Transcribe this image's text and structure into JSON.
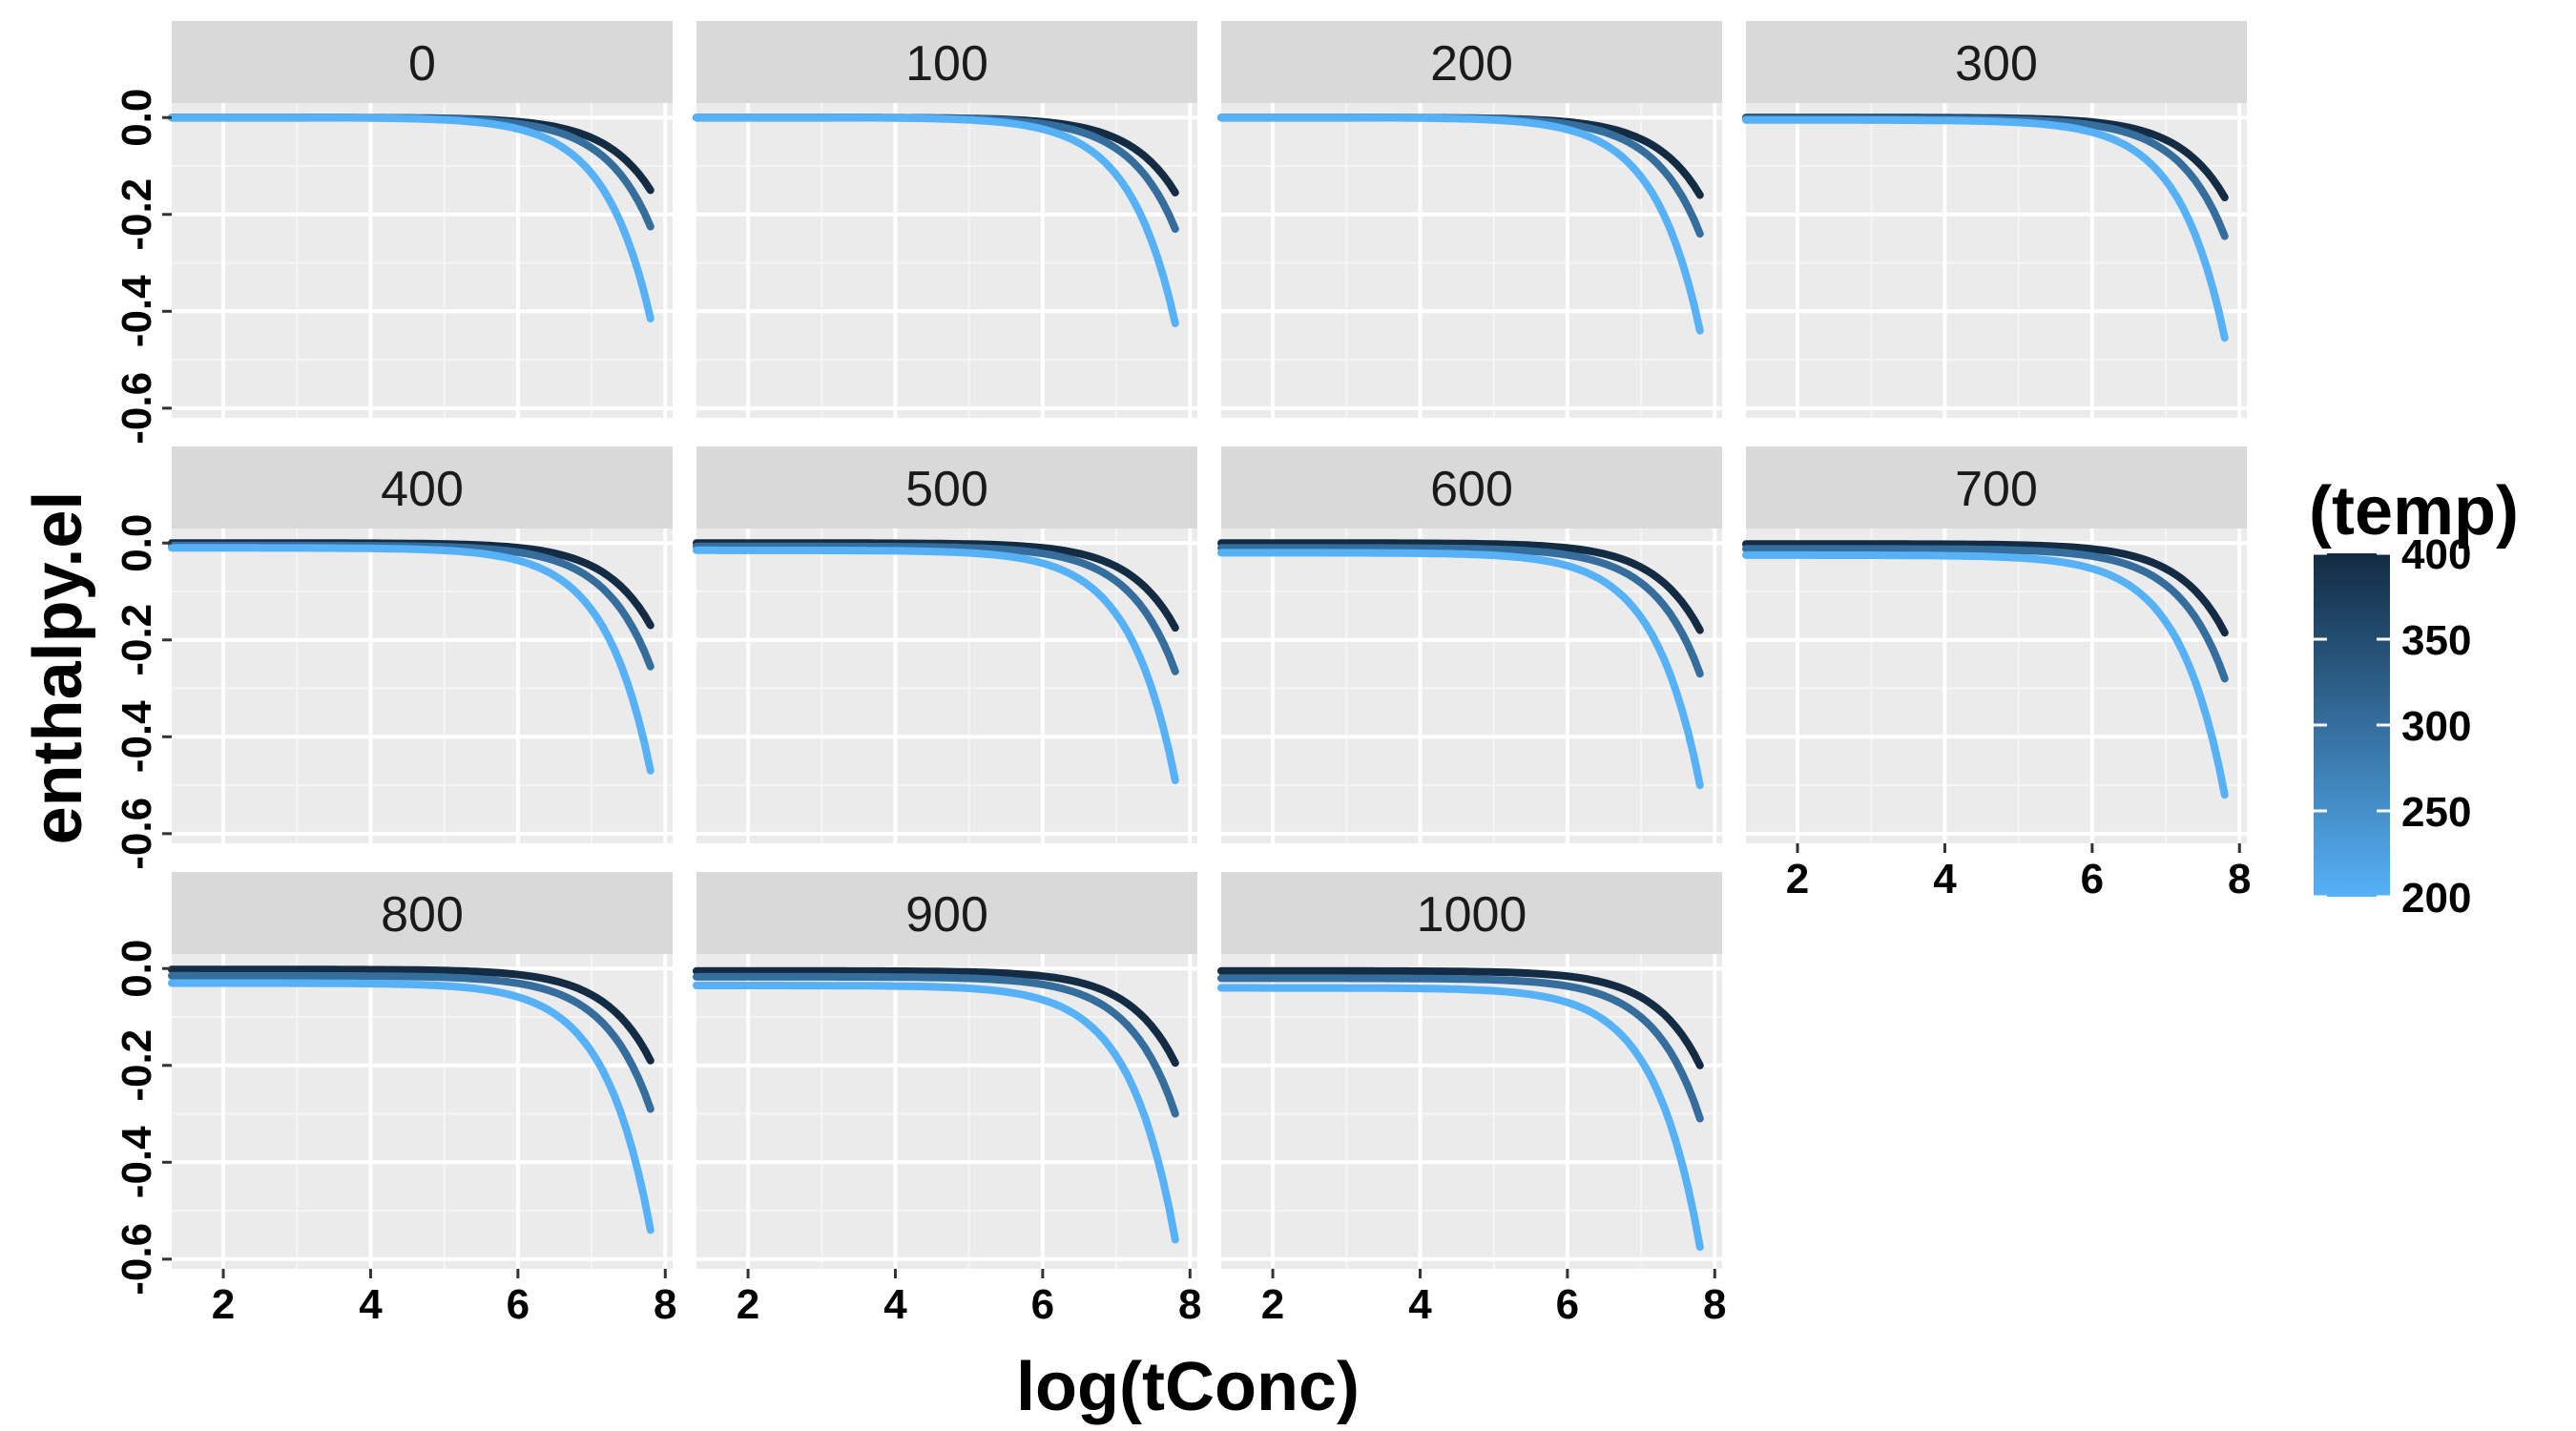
{
  "chart_data": {
    "type": "line",
    "facet_variable_values": [
      "0",
      "100",
      "200",
      "300",
      "400",
      "500",
      "600",
      "700",
      "800",
      "900",
      "1000"
    ],
    "xlabel": "log(tConc)",
    "ylabel": "enthalpy.el",
    "xlim": [
      1.3,
      8.1
    ],
    "ylim": [
      -0.62,
      0.03
    ],
    "x_ticks": [
      2,
      4,
      6,
      8
    ],
    "x_tick_labels": [
      "2",
      "4",
      "6",
      "8"
    ],
    "y_ticks": [
      0.0,
      -0.2,
      -0.4,
      -0.6
    ],
    "y_tick_labels": [
      "0.0",
      "-0.2",
      "-0.4",
      "-0.6"
    ],
    "grid": true,
    "legend": {
      "title": "(temp)",
      "type": "colorbar",
      "position": "right",
      "range": [
        200,
        400
      ],
      "ticks": [
        "400",
        "350",
        "300",
        "250",
        "200"
      ],
      "color_low": "#56B1F7",
      "color_high": "#132B43"
    },
    "x_range_of_curves": [
      1.3,
      7.8
    ],
    "series_temps": [
      400,
      300,
      200
    ],
    "panels": [
      {
        "facet": "0",
        "curves": [
          {
            "temp": 400,
            "start": 0.0,
            "end": -0.15
          },
          {
            "temp": 300,
            "start": 0.0,
            "end": -0.225
          },
          {
            "temp": 200,
            "start": 0.0,
            "end": -0.415
          }
        ]
      },
      {
        "facet": "100",
        "curves": [
          {
            "temp": 400,
            "start": 0.0,
            "end": -0.155
          },
          {
            "temp": 300,
            "start": 0.0,
            "end": -0.23
          },
          {
            "temp": 200,
            "start": 0.0,
            "end": -0.425
          }
        ]
      },
      {
        "facet": "200",
        "curves": [
          {
            "temp": 400,
            "start": 0.0,
            "end": -0.16
          },
          {
            "temp": 300,
            "start": 0.0,
            "end": -0.24
          },
          {
            "temp": 200,
            "start": 0.0,
            "end": -0.44
          }
        ]
      },
      {
        "facet": "300",
        "curves": [
          {
            "temp": 400,
            "start": 0.0,
            "end": -0.165
          },
          {
            "temp": 300,
            "start": -0.002,
            "end": -0.245
          },
          {
            "temp": 200,
            "start": -0.005,
            "end": -0.455
          }
        ]
      },
      {
        "facet": "400",
        "curves": [
          {
            "temp": 400,
            "start": 0.0,
            "end": -0.17
          },
          {
            "temp": 300,
            "start": -0.005,
            "end": -0.255
          },
          {
            "temp": 200,
            "start": -0.01,
            "end": -0.47
          }
        ]
      },
      {
        "facet": "500",
        "curves": [
          {
            "temp": 400,
            "start": 0.0,
            "end": -0.175
          },
          {
            "temp": 300,
            "start": -0.007,
            "end": -0.265
          },
          {
            "temp": 200,
            "start": -0.015,
            "end": -0.49
          }
        ]
      },
      {
        "facet": "600",
        "curves": [
          {
            "temp": 400,
            "start": 0.0,
            "end": -0.18
          },
          {
            "temp": 300,
            "start": -0.01,
            "end": -0.27
          },
          {
            "temp": 200,
            "start": -0.02,
            "end": -0.5
          }
        ]
      },
      {
        "facet": "700",
        "curves": [
          {
            "temp": 400,
            "start": -0.002,
            "end": -0.185
          },
          {
            "temp": 300,
            "start": -0.012,
            "end": -0.28
          },
          {
            "temp": 200,
            "start": -0.025,
            "end": -0.52
          }
        ]
      },
      {
        "facet": "800",
        "curves": [
          {
            "temp": 400,
            "start": -0.002,
            "end": -0.19
          },
          {
            "temp": 300,
            "start": -0.015,
            "end": -0.29
          },
          {
            "temp": 200,
            "start": -0.03,
            "end": -0.54
          }
        ]
      },
      {
        "facet": "900",
        "curves": [
          {
            "temp": 400,
            "start": -0.005,
            "end": -0.195
          },
          {
            "temp": 300,
            "start": -0.017,
            "end": -0.3
          },
          {
            "temp": 200,
            "start": -0.035,
            "end": -0.56
          }
        ]
      },
      {
        "facet": "1000",
        "curves": [
          {
            "temp": 400,
            "start": -0.005,
            "end": -0.2
          },
          {
            "temp": 300,
            "start": -0.02,
            "end": -0.31
          },
          {
            "temp": 200,
            "start": -0.04,
            "end": -0.575
          }
        ]
      }
    ]
  }
}
